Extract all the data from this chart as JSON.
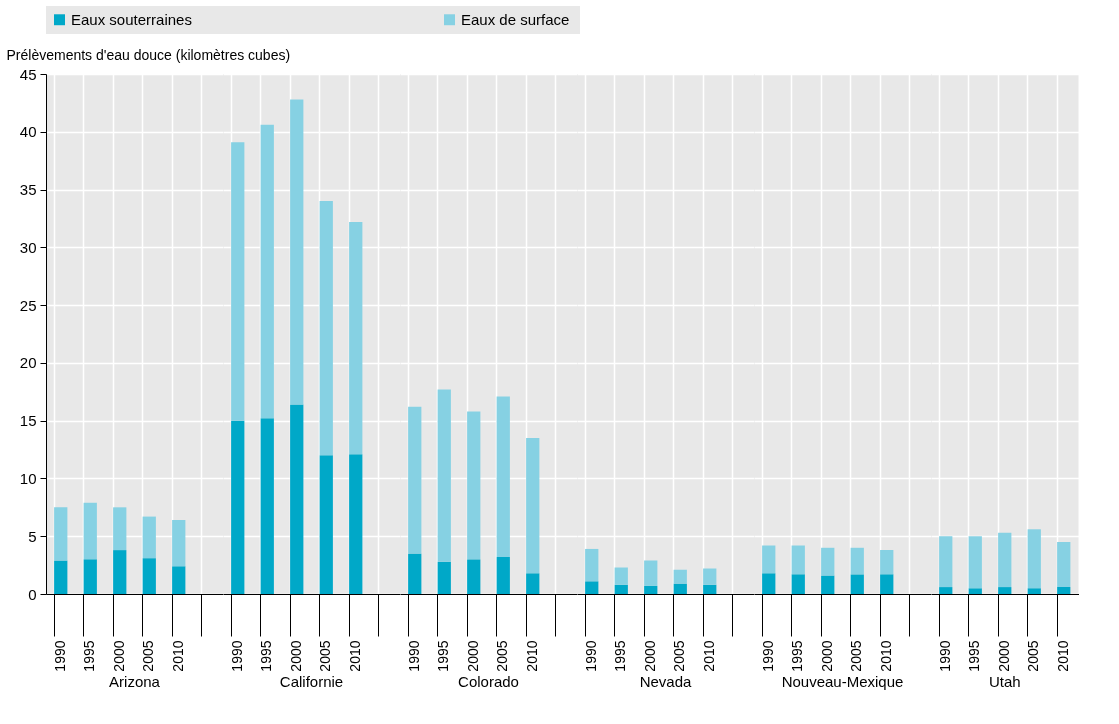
{
  "chart_data": [
    {
      "type": "bar",
      "stacked": true,
      "title": "Arizona",
      "ylabel": "Prélèvements d'eau douce (kilomètres cubes)",
      "categories": [
        "1990",
        "1995",
        "2000",
        "2005",
        "2010",
        null
      ],
      "series": [
        {
          "name": "Eaux souterraines",
          "color": "#00a8c8",
          "values": [
            2.9,
            3.0,
            3.8,
            3.1,
            2.4,
            null
          ]
        },
        {
          "name": "Eaux  de surface",
          "color": "#86d1e3",
          "values": [
            4.6,
            4.9,
            3.7,
            3.6,
            4.0,
            null
          ]
        }
      ],
      "ylim": [
        0,
        45
      ],
      "yticks": [
        0,
        5,
        10,
        15,
        20,
        25,
        30,
        35,
        40,
        45
      ],
      "grid": true,
      "legend": "top"
    },
    {
      "type": "bar",
      "stacked": true,
      "title": "Californie",
      "categories": [
        "1990",
        "1995",
        "2000",
        "2005",
        "2010",
        null
      ],
      "series": [
        {
          "name": "Eaux souterraines",
          "color": "#00a8c8",
          "values": [
            15.0,
            15.2,
            16.4,
            12.0,
            12.1,
            null
          ]
        },
        {
          "name": "Eaux  de surface",
          "color": "#86d1e3",
          "values": [
            24.1,
            25.4,
            26.4,
            22.0,
            20.1,
            null
          ]
        }
      ],
      "ylim": [
        0,
        45
      ],
      "yticks": [
        0,
        5,
        10,
        15,
        20,
        25,
        30,
        35,
        40,
        45
      ],
      "grid": true,
      "tick_labels": "x"
    },
    {
      "type": "bar",
      "stacked": true,
      "title": "Colorado",
      "categories": [
        "1990",
        "1995",
        "2000",
        "2005",
        "2010",
        null
      ],
      "series": [
        {
          "name": "Eaux souterraines",
          "color": "#00a8c8",
          "values": [
            3.5,
            2.8,
            3.0,
            3.2,
            1.8,
            null
          ]
        },
        {
          "name": "Eaux  de surface",
          "color": "#86d1e3",
          "values": [
            12.7,
            14.9,
            12.8,
            13.9,
            11.7,
            null
          ]
        }
      ],
      "ylim": [
        0,
        45
      ],
      "yticks": [
        0,
        5,
        10,
        15,
        20,
        25,
        30,
        35,
        40,
        45
      ],
      "grid": true,
      "tick_labels": "x"
    },
    {
      "type": "bar",
      "stacked": true,
      "title": "Nevada",
      "categories": [
        "1990",
        "1995",
        "2000",
        "2005",
        "2010",
        null
      ],
      "series": [
        {
          "name": "Eaux souterraines",
          "color": "#00a8c8",
          "values": [
            1.1,
            0.8,
            0.7,
            0.9,
            0.8,
            null
          ]
        },
        {
          "name": "Eaux  de surface",
          "color": "#86d1e3",
          "values": [
            2.8,
            1.5,
            2.2,
            1.2,
            1.4,
            null
          ]
        }
      ],
      "ylim": [
        0,
        45
      ],
      "yticks": [
        0,
        5,
        10,
        15,
        20,
        25,
        30,
        35,
        40,
        45
      ],
      "grid": true,
      "tick_labels": "x"
    },
    {
      "type": "bar",
      "stacked": true,
      "title": "Nouveau-Mexique",
      "categories": [
        "1990",
        "1995",
        "2000",
        "2005",
        "2010",
        null
      ],
      "series": [
        {
          "name": "Eaux souterraines",
          "color": "#00a8c8",
          "values": [
            1.8,
            1.7,
            1.6,
            1.7,
            1.7,
            null
          ]
        },
        {
          "name": "Eaux  de surface",
          "color": "#86d1e3",
          "values": [
            2.4,
            2.5,
            2.4,
            2.3,
            2.1,
            null
          ]
        }
      ],
      "ylim": [
        0,
        45
      ],
      "yticks": [
        0,
        5,
        10,
        15,
        20,
        25,
        30,
        35,
        40,
        45
      ],
      "grid": true,
      "tick_labels": "x"
    },
    {
      "type": "bar",
      "stacked": true,
      "title": "Utah",
      "categories": [
        "1990",
        "1995",
        "2000",
        "2005",
        "2010"
      ],
      "series": [
        {
          "name": "Eaux souterraines",
          "color": "#00a8c8",
          "values": [
            0.6,
            0.5,
            0.6,
            0.5,
            0.6
          ]
        },
        {
          "name": "Eaux  de surface",
          "color": "#86d1e3",
          "values": [
            4.4,
            4.5,
            4.7,
            5.1,
            3.9
          ]
        }
      ],
      "ylim": [
        0,
        45
      ],
      "yticks": [
        0,
        5,
        10,
        15,
        20,
        25,
        30,
        35,
        40,
        45
      ],
      "grid": true,
      "tick_labels": "x"
    }
  ]
}
